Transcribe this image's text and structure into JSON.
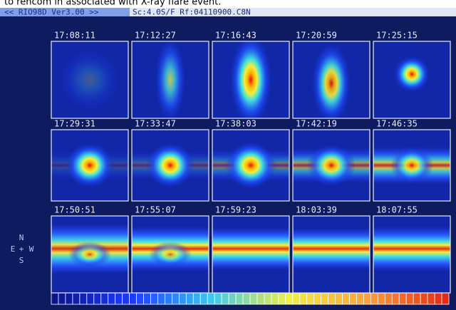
{
  "caption": "to rencom in associated with X-ray flare event.",
  "header": {
    "title": "<< RIO98D Ver3.00 >>",
    "info": "Sc:4.0S/F Rf:04110900.C8N"
  },
  "panels": [
    {
      "time": "17:08:11"
    },
    {
      "time": "17:12:27"
    },
    {
      "time": "17:16:43"
    },
    {
      "time": "17:20:59"
    },
    {
      "time": "17:25:15"
    },
    {
      "time": "17:29:31"
    },
    {
      "time": "17:33:47"
    },
    {
      "time": "17:38:03"
    },
    {
      "time": "17:42:19"
    },
    {
      "time": "17:46:35"
    },
    {
      "time": "17:50:51"
    },
    {
      "time": "17:55:07"
    },
    {
      "time": "17:59:23"
    },
    {
      "time": "18:03:39"
    },
    {
      "time": "18:07:55"
    }
  ],
  "compass": {
    "north": "N",
    "east": "E",
    "center": "+",
    "west": "W",
    "south": "S"
  }
}
